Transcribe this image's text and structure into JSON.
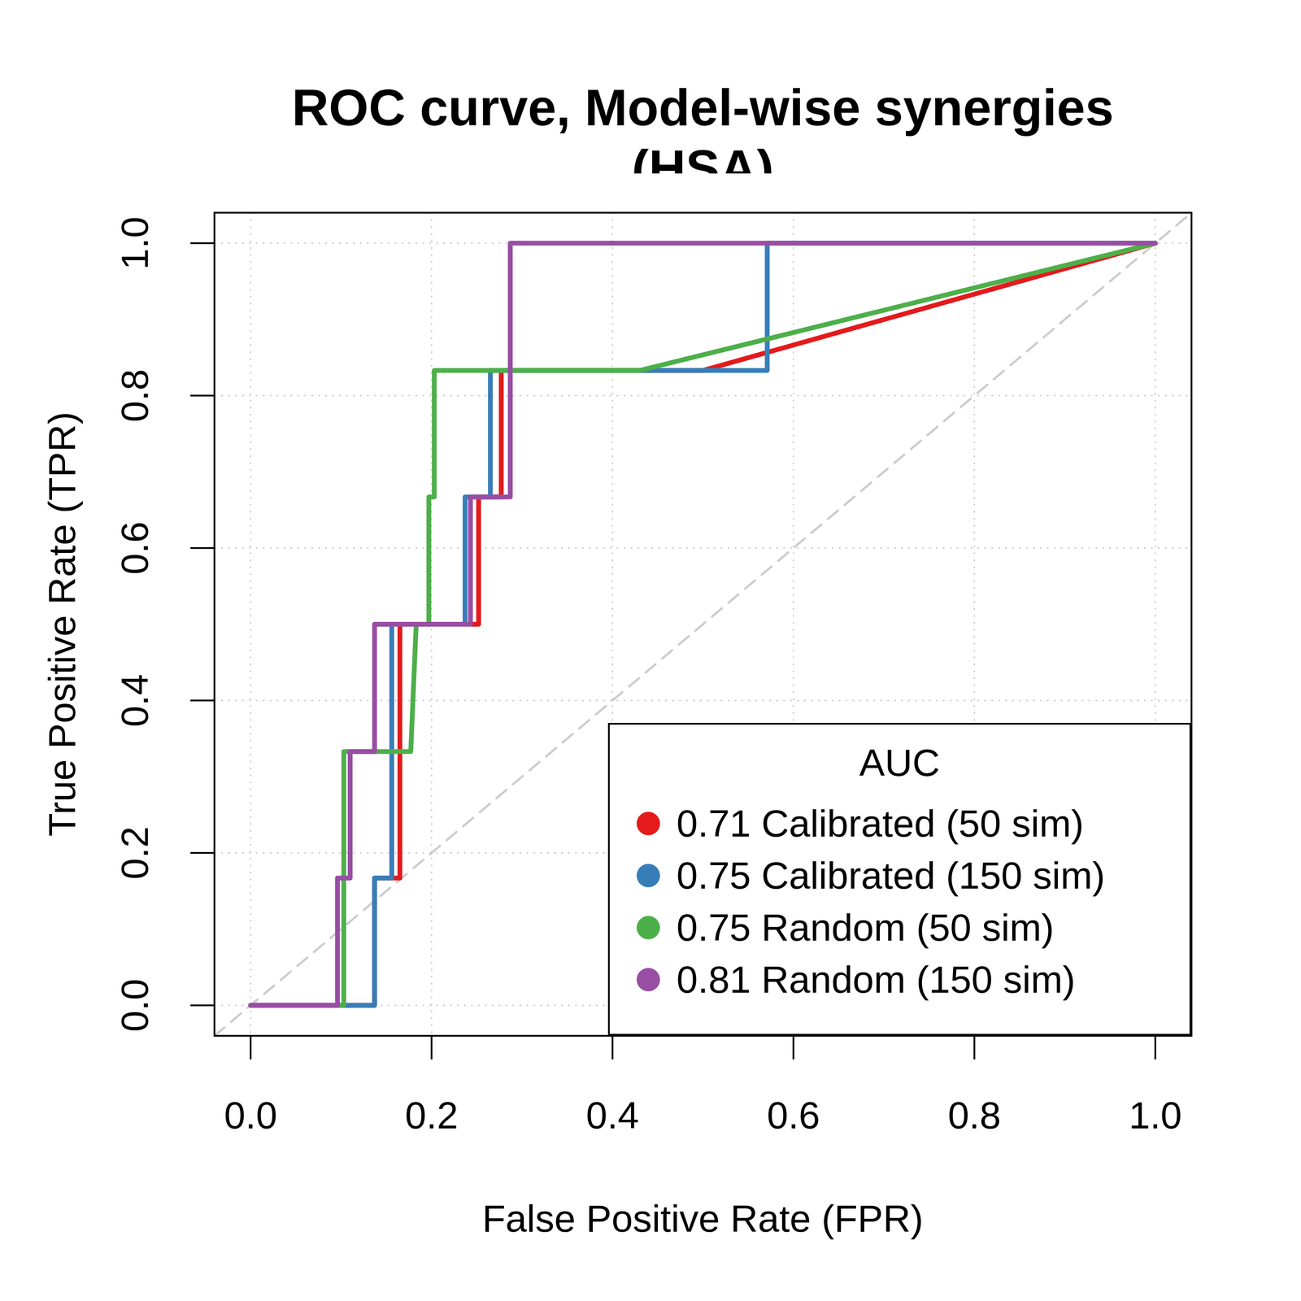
{
  "chart_data": {
    "type": "line",
    "title": "ROC curve, Model-wise synergies (HSA)",
    "x_label": "False Positive Rate (FPR)",
    "y_label": "True Positive Rate (TPR)",
    "xlim": [
      -0.04,
      1.04
    ],
    "ylim": [
      -0.04,
      1.04
    ],
    "xticks": [
      {
        "value": 0,
        "label": "0.0"
      },
      0.2,
      0.4,
      0.6,
      0.8,
      {
        "value": 1,
        "label": "1.0"
      }
    ],
    "yticks": [
      {
        "value": 0,
        "label": "0.0"
      },
      0.2,
      0.4,
      0.6,
      0.8,
      {
        "value": 1,
        "label": "1.0"
      }
    ],
    "grid": true,
    "legend": "bottom-right",
    "legend_title": "AUC",
    "series": [
      {
        "name": "0.71 Calibrated (50 sim)",
        "color": "#E41A1C",
        "x": [
          0,
          0.137,
          0.137,
          0.165,
          0.165,
          0.252,
          0.252,
          0.277,
          0.277,
          0.5,
          1
        ],
        "values": [
          0,
          0,
          0.167,
          0.167,
          0.5,
          0.5,
          0.667,
          0.667,
          0.833,
          0.833,
          1
        ]
      },
      {
        "name": "0.75 Calibrated (150 sim)",
        "color": "#377EB8",
        "x": [
          0,
          0.137,
          0.137,
          0.156,
          0.156,
          0.237,
          0.237,
          0.265,
          0.265,
          0.571,
          0.571,
          1
        ],
        "values": [
          0,
          0,
          0.167,
          0.167,
          0.5,
          0.5,
          0.667,
          0.667,
          0.833,
          0.833,
          1,
          1
        ]
      },
      {
        "name": "0.75 Random (50 sim)",
        "color": "#4DAF4A",
        "x": [
          0,
          0.103,
          0.103,
          0.103,
          0.177,
          0.183,
          0.197,
          0.197,
          0.203,
          0.203,
          0.43,
          1
        ],
        "values": [
          0,
          0,
          0.167,
          0.333,
          0.333,
          0.5,
          0.5,
          0.667,
          0.667,
          0.833,
          0.833,
          1
        ]
      },
      {
        "name": "0.81 Random (150 sim)",
        "color": "#984EA3",
        "x": [
          0,
          0.096,
          0.096,
          0.11,
          0.11,
          0.137,
          0.137,
          0.243,
          0.243,
          0.287,
          0.287,
          1
        ],
        "values": [
          0,
          0,
          0.167,
          0.167,
          0.333,
          0.333,
          0.5,
          0.5,
          0.667,
          0.667,
          1,
          1
        ]
      }
    ]
  }
}
